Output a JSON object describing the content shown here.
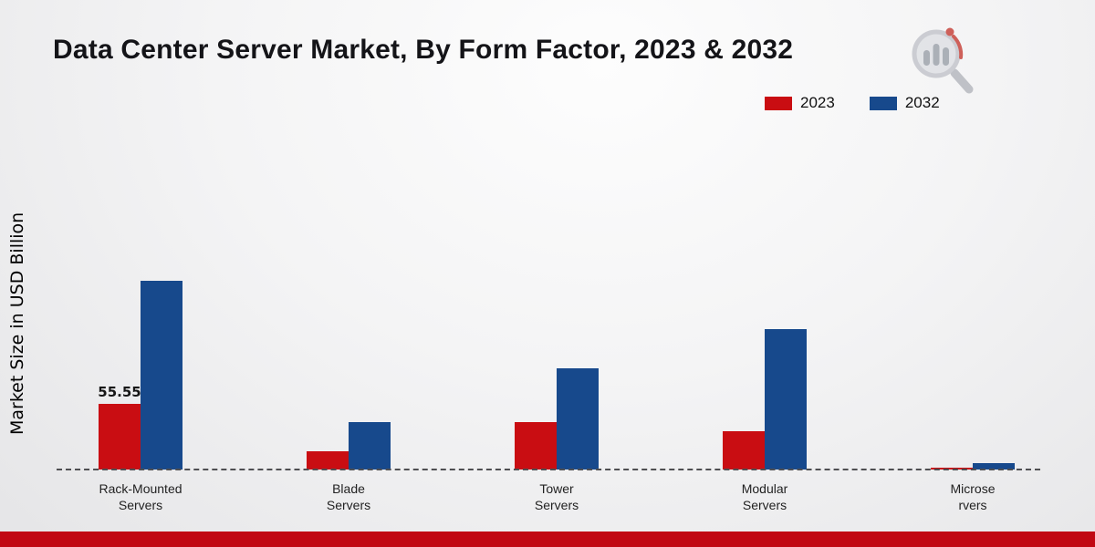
{
  "header": {
    "title": "Data Center Server Market, By Form Factor, 2023 & 2032"
  },
  "y_axis": {
    "label": "Market Size in USD Billion"
  },
  "legend": [
    {
      "label": "2023",
      "color": "#c90d12"
    },
    {
      "label": "2032",
      "color": "#17498c"
    }
  ],
  "logo": {
    "name": "market-research-future-logo"
  },
  "footer": {
    "stripe_color": "#c10813"
  },
  "chart_data": {
    "type": "bar",
    "title": "Data Center Server Market, By Form Factor, 2023 & 2032",
    "xlabel": "",
    "ylabel": "Market Size in USD Billion",
    "categories": [
      "Rack-Mounted Servers",
      "Blade Servers",
      "Tower Servers",
      "Modular Servers",
      "Microservers"
    ],
    "label_lines": [
      [
        "Rack-Mounted",
        "Servers"
      ],
      [
        "Blade",
        "Servers"
      ],
      [
        "Tower",
        "Servers"
      ],
      [
        "Modular",
        "Servers"
      ],
      [
        "Microse",
        "rvers"
      ]
    ],
    "series": [
      {
        "name": "2023",
        "color": "#c90d12",
        "values": [
          55.55,
          15.2,
          39.8,
          32.0,
          1.3
        ]
      },
      {
        "name": "2032",
        "color": "#17498c",
        "values": [
          159.6,
          39.9,
          85.3,
          118.2,
          5.1
        ]
      }
    ],
    "bar_labels": [
      {
        "series_index": 0,
        "category_index": 0,
        "text": "55.55"
      }
    ],
    "ylim": [
      0,
      170
    ],
    "baseline_value": 0,
    "grid": false,
    "y_ticks_visible": false,
    "legend_position": "top-right",
    "baseline_style": "dashed"
  }
}
